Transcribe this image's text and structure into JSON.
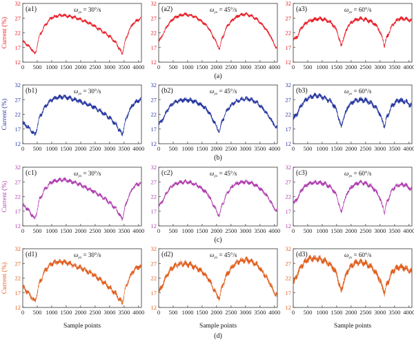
{
  "chart_data": {
    "type": "line",
    "xlabel": "Sample points",
    "ylabel": "Current (%)",
    "xlim": [
      0,
      4100
    ],
    "ylim": [
      12,
      32
    ],
    "x_ticks": [
      "0",
      "500",
      "1000",
      "1500",
      "2000",
      "2500",
      "3000",
      "3500",
      "4000"
    ],
    "y_ticks": [
      "12",
      "17",
      "22",
      "27",
      "32"
    ],
    "grid": false,
    "legend": "none",
    "rows": [
      {
        "caption": "(a)",
        "color": "#e8202a",
        "panels": [
          {
            "label": "(a1)",
            "omega_symbol": "ω",
            "omega_sub": "yx",
            "omega_value": "= 30°/s",
            "noise": 0.45,
            "x": [
              0,
              150,
              300,
              420,
              600,
              800,
              1000,
              1200,
              1400,
              1600,
              1800,
              2000,
              2200,
              2400,
              2600,
              2800,
              3000,
              3200,
              3350,
              3430,
              3550,
              3700,
              3850,
              4000,
              4080
            ],
            "y": [
              19.0,
              18.0,
              16.5,
              14.8,
              21.5,
              25.0,
              27.2,
              27.8,
              28.0,
              27.6,
              27.2,
              26.5,
              25.8,
              24.8,
              23.5,
              22.2,
              20.8,
              18.8,
              16.5,
              14.8,
              19.5,
              23.5,
              25.5,
              26.5,
              26.9
            ]
          },
          {
            "label": "(a2)",
            "omega_symbol": "ω",
            "omega_sub": "yx",
            "omega_value": "= 45°/s",
            "noise": 0.45,
            "x": [
              0,
              150,
              300,
              500,
              700,
              900,
              1100,
              1300,
              1500,
              1700,
              1900,
              2050,
              2100,
              2200,
              2400,
              2600,
              2800,
              3000,
              3200,
              3400,
              3600,
              3800,
              3950,
              4080
            ],
            "y": [
              19.0,
              21.5,
              24.5,
              26.8,
              27.8,
              28.3,
              28.0,
              27.2,
              25.8,
              24.0,
              20.5,
              17.5,
              16.5,
              20.5,
              24.8,
              26.8,
              28.0,
              28.3,
              27.8,
              26.5,
              24.5,
              22.0,
              19.0,
              16.5
            ]
          },
          {
            "label": "(a3)",
            "omega_symbol": "ω",
            "omega_sub": "yx",
            "omega_value": "= 60°/s",
            "noise": 0.55,
            "x": [
              0,
              150,
              300,
              500,
              700,
              900,
              1100,
              1300,
              1500,
              1600,
              1650,
              1750,
              1900,
              2100,
              2300,
              2500,
              2700,
              2900,
              3100,
              3150,
              3250,
              3450,
              3650,
              3850,
              4080
            ],
            "y": [
              19.5,
              21.0,
              24.0,
              25.8,
              26.5,
              26.8,
              26.5,
              25.5,
              23.0,
              19.5,
              17.5,
              20.5,
              24.5,
              26.2,
              26.8,
              26.5,
              25.8,
              24.2,
              20.0,
              17.5,
              21.0,
              25.0,
              26.8,
              26.8,
              26.2
            ]
          }
        ]
      },
      {
        "caption": "(b)",
        "color": "#2838a0",
        "panels": [
          {
            "label": "(b1)",
            "omega_symbol": "ω",
            "omega_sub": "yx",
            "omega_value": "= 30°/s",
            "noise": 0.6,
            "x": [
              0,
              150,
              300,
              420,
              600,
              800,
              1000,
              1200,
              1400,
              1600,
              1800,
              2000,
              2200,
              2400,
              2600,
              2800,
              3000,
              3200,
              3350,
              3430,
              3550,
              3700,
              3850,
              4000,
              4080
            ],
            "y": [
              19.0,
              18.0,
              16.5,
              15.0,
              21.5,
              25.0,
              27.0,
              27.8,
              28.0,
              27.6,
              27.0,
              26.3,
              25.6,
              24.8,
              23.6,
              22.3,
              20.8,
              18.8,
              16.5,
              15.0,
              19.8,
              23.8,
              25.8,
              26.8,
              27.0
            ]
          },
          {
            "label": "(b2)",
            "omega_symbol": "ω",
            "omega_sub": "yx",
            "omega_value": "= 45°/s",
            "noise": 0.6,
            "x": [
              0,
              150,
              300,
              500,
              700,
              900,
              1100,
              1300,
              1500,
              1700,
              1900,
              2050,
              2100,
              2200,
              2400,
              2600,
              2800,
              3000,
              3200,
              3400,
              3600,
              3800,
              3950,
              4080
            ],
            "y": [
              18.5,
              20.5,
              23.5,
              25.8,
              26.6,
              27.0,
              26.8,
              26.2,
              25.0,
              23.2,
              19.8,
              16.8,
              16.2,
              20.0,
              24.0,
              26.0,
              27.0,
              27.4,
              27.0,
              26.0,
              24.0,
              21.5,
              19.0,
              17.5
            ]
          },
          {
            "label": "(b3)",
            "omega_symbol": "ω",
            "omega_sub": "yx",
            "omega_value": "= 60°/s",
            "noise": 0.7,
            "x": [
              0,
              150,
              300,
              500,
              700,
              900,
              1100,
              1300,
              1500,
              1600,
              1650,
              1750,
              1900,
              2100,
              2300,
              2500,
              2700,
              2900,
              3100,
              3150,
              3250,
              3450,
              3650,
              3850,
              4080
            ],
            "y": [
              20.5,
              22.5,
              25.5,
              27.5,
              28.3,
              28.3,
              27.5,
              26.3,
              23.5,
              19.5,
              17.8,
              21.0,
              24.8,
              26.5,
              27.0,
              26.8,
              25.8,
              23.8,
              19.5,
              17.8,
              21.5,
              25.5,
              26.8,
              26.5,
              25.0
            ]
          }
        ]
      },
      {
        "caption": "(c)",
        "color": "#b040b0",
        "panels": [
          {
            "label": "(c1)",
            "omega_symbol": "ω",
            "omega_sub": "yx",
            "omega_value": "= 30°/s",
            "noise": 0.55,
            "x": [
              0,
              150,
              300,
              420,
              600,
              800,
              1000,
              1200,
              1400,
              1600,
              1800,
              2000,
              2200,
              2400,
              2600,
              2800,
              3000,
              3200,
              3350,
              3430,
              3550,
              3700,
              3850,
              4000,
              4080
            ],
            "y": [
              19.0,
              18.0,
              16.0,
              14.5,
              21.5,
              25.0,
              27.0,
              27.5,
              27.8,
              27.3,
              26.8,
              26.0,
              25.0,
              24.0,
              22.8,
              21.5,
              20.0,
              18.0,
              15.8,
              14.3,
              19.0,
              23.0,
              25.5,
              26.3,
              26.5
            ]
          },
          {
            "label": "(c2)",
            "omega_symbol": "ω",
            "omega_sub": "yx",
            "omega_value": "= 45°/s",
            "noise": 0.55,
            "x": [
              0,
              150,
              300,
              500,
              700,
              900,
              1100,
              1300,
              1500,
              1700,
              1900,
              2050,
              2100,
              2200,
              2400,
              2600,
              2800,
              3000,
              3200,
              3400,
              3600,
              3800,
              3950,
              4080
            ],
            "y": [
              18.5,
              20.8,
              23.8,
              26.0,
              26.8,
              27.0,
              26.8,
              26.0,
              24.6,
              22.8,
              19.0,
              16.0,
              15.8,
              19.5,
              23.8,
              26.0,
              26.8,
              27.0,
              26.6,
              25.6,
              23.8,
              21.5,
              18.8,
              17.0
            ]
          },
          {
            "label": "(c3)",
            "omega_symbol": "ω",
            "omega_sub": "yx",
            "omega_value": "= 60°/s",
            "noise": 0.6,
            "x": [
              0,
              150,
              300,
              500,
              700,
              900,
              1100,
              1300,
              1500,
              1600,
              1650,
              1750,
              1900,
              2100,
              2300,
              2500,
              2700,
              2900,
              3100,
              3150,
              3250,
              3450,
              3650,
              3850,
              4080
            ],
            "y": [
              19.5,
              21.5,
              24.5,
              26.3,
              26.8,
              26.8,
              26.3,
              25.2,
              22.5,
              18.5,
              16.5,
              20.0,
              24.0,
              26.0,
              26.8,
              26.5,
              25.5,
              23.3,
              18.8,
              16.5,
              20.5,
              24.8,
              26.0,
              26.0,
              24.5
            ]
          }
        ]
      },
      {
        "caption": "(d)",
        "color": "#e06020",
        "panels": [
          {
            "label": "(d1)",
            "omega_symbol": "ω",
            "omega_sub": "yx",
            "omega_value": "= 30°/s",
            "noise": 0.7,
            "x": [
              0,
              150,
              300,
              420,
              600,
              800,
              1000,
              1200,
              1400,
              1600,
              1800,
              2000,
              2200,
              2400,
              2600,
              2800,
              3000,
              3200,
              3350,
              3430,
              3550,
              3700,
              3850,
              4000,
              4080
            ],
            "y": [
              19.0,
              17.5,
              15.5,
              14.0,
              21.0,
              25.0,
              27.0,
              27.5,
              27.5,
              27.0,
              26.2,
              25.5,
              24.5,
              23.5,
              22.0,
              20.5,
              18.8,
              16.8,
              14.8,
              13.5,
              18.5,
              22.5,
              24.8,
              25.8,
              26.0
            ]
          },
          {
            "label": "(d2)",
            "omega_symbol": "ω",
            "omega_sub": "yx",
            "omega_value": "= 45°/s",
            "noise": 0.8,
            "x": [
              0,
              150,
              300,
              500,
              700,
              900,
              1100,
              1300,
              1500,
              1700,
              1900,
              2050,
              2100,
              2200,
              2400,
              2600,
              2800,
              3000,
              3200,
              3400,
              3600,
              3800,
              3950,
              4080
            ],
            "y": [
              17.0,
              20.0,
              23.5,
              25.8,
              26.8,
              27.0,
              26.5,
              25.5,
              24.2,
              22.0,
              18.5,
              15.5,
              15.3,
              19.5,
              24.0,
              26.5,
              27.8,
              28.2,
              27.8,
              26.5,
              24.0,
              21.0,
              18.0,
              16.0
            ]
          },
          {
            "label": "(d3)",
            "omega_symbol": "ω",
            "omega_sub": "yx",
            "omega_value": "= 60°/s",
            "noise": 0.9,
            "x": [
              0,
              150,
              300,
              500,
              700,
              900,
              1100,
              1300,
              1500,
              1600,
              1650,
              1750,
              1900,
              2100,
              2300,
              2500,
              2700,
              2900,
              3100,
              3150,
              3250,
              3450,
              3650,
              3850,
              4080
            ],
            "y": [
              20.0,
              23.5,
              26.5,
              28.3,
              28.8,
              28.5,
              27.8,
              26.5,
              23.5,
              19.5,
              17.5,
              21.0,
              25.0,
              27.0,
              27.5,
              27.0,
              25.8,
              23.2,
              18.8,
              16.8,
              20.5,
              24.5,
              25.8,
              25.5,
              24.2
            ]
          }
        ]
      }
    ]
  }
}
